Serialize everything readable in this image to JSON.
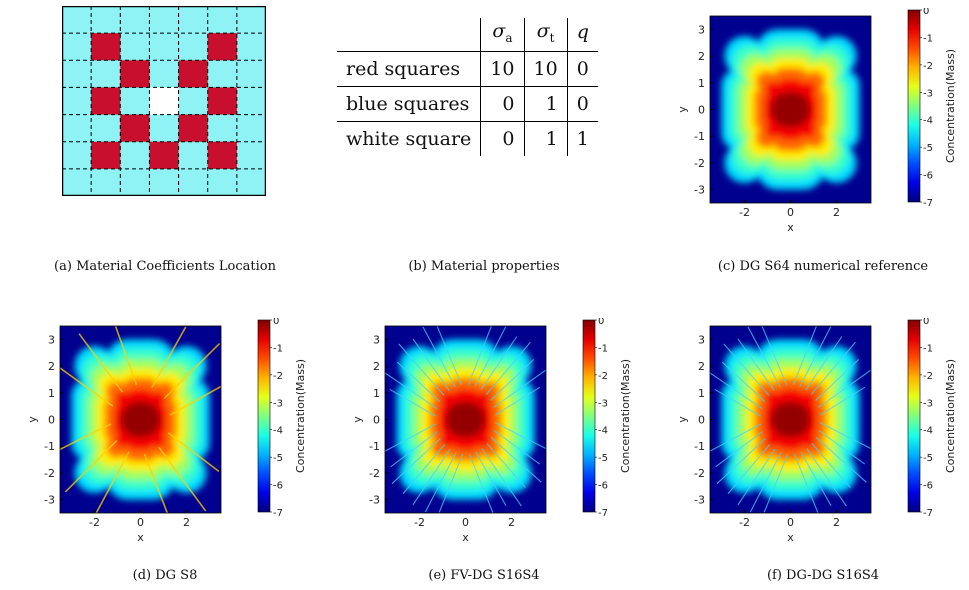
{
  "captions": {
    "a": "(a) Material Coefficients Location",
    "b": "(b) Material properties",
    "c": "(c) DG S64 numerical reference",
    "d": "(d) DG S8",
    "e": "(e) FV-DG S16S4",
    "f": "(f) DG-DG S16S4"
  },
  "table": {
    "headers": [
      "",
      "σa",
      "σt",
      "q"
    ],
    "rows": [
      [
        "red squares",
        "10",
        "10",
        "0"
      ],
      [
        "blue squares",
        "0",
        "1",
        "0"
      ],
      [
        "white square",
        "0",
        "1",
        "1"
      ]
    ]
  },
  "plots": {
    "xlabel": "x",
    "ylabel": "y",
    "x_ticks": [
      "-2",
      "0",
      "2"
    ],
    "y_ticks": [
      "3",
      "2",
      "1",
      "0",
      "-1",
      "-2",
      "-3"
    ],
    "colorbar_label": "Concentration(Mass)",
    "colorbar_ticks": [
      "0",
      "-1",
      "-2",
      "-3",
      "-4",
      "-5",
      "-6",
      "-7"
    ]
  },
  "colors": {
    "red": "#c8102e",
    "blue": "#8ff2f4",
    "white": "#ffffff",
    "map_bg": "#00008f"
  },
  "material_grid": [
    [
      "b",
      "b",
      "b",
      "b",
      "b",
      "b",
      "b"
    ],
    [
      "b",
      "r",
      "b",
      "b",
      "b",
      "r",
      "b"
    ],
    [
      "b",
      "b",
      "r",
      "b",
      "r",
      "b",
      "b"
    ],
    [
      "b",
      "r",
      "b",
      "w",
      "b",
      "r",
      "b"
    ],
    [
      "b",
      "b",
      "r",
      "b",
      "r",
      "b",
      "b"
    ],
    [
      "b",
      "r",
      "b",
      "r",
      "b",
      "r",
      "b"
    ],
    [
      "b",
      "b",
      "b",
      "b",
      "b",
      "b",
      "b"
    ]
  ]
}
